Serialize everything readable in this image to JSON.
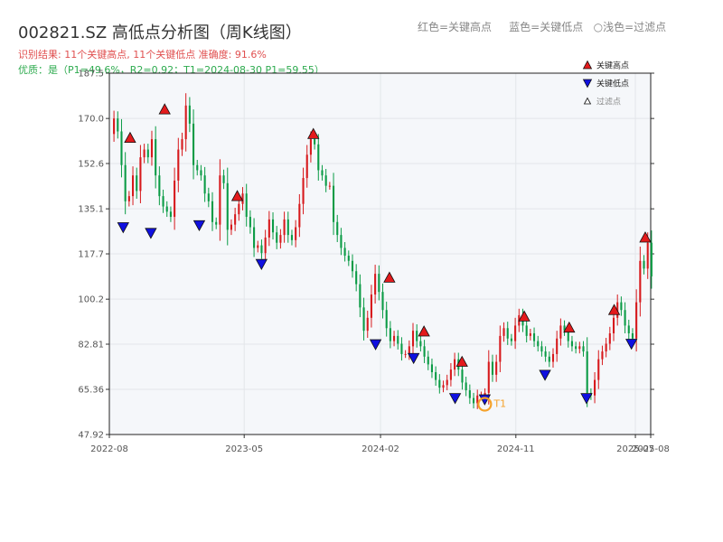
{
  "header": {
    "title": "002821.SZ 高低点分析图（周K线图）",
    "key_red": "红色=关键高点",
    "key_blue": "蓝色=关键低点",
    "key_light": "○浅色=过滤点",
    "result": "识别结果: 11个关键高点, 11个关键低点   准确度: 91.6%",
    "quality": "优质：是（P1=49.6%，R2=0.92；T1=2024-08-30 P1=59.55）"
  },
  "chart_data": {
    "type": "candlestick",
    "ylim": [
      47.92,
      187.5
    ],
    "yticks": [
      "47.92",
      "65.36",
      "82.81",
      "100.2",
      "117.7",
      "135.1",
      "152.6",
      "170.0",
      "187.5"
    ],
    "xticks": [
      "2022-08",
      "2023-05",
      "2024-02",
      "2024-11",
      "2025-07",
      "2025-08"
    ],
    "x_range": [
      "2022-08-01",
      "2025-08-01"
    ],
    "grid": true,
    "legend": {
      "position": "top-right",
      "entries": [
        {
          "label": "关键高点",
          "marker": "triangle-up",
          "color": "#e31a1c"
        },
        {
          "label": "关键低点",
          "marker": "triangle-down",
          "color": "#1010e0"
        },
        {
          "label": "过滤点",
          "marker": "triangle-up-small",
          "color": "#ffffff"
        }
      ]
    },
    "up_color": "#d7191c",
    "down_color": "#0a9b45",
    "closes": [
      170,
      165,
      152,
      138,
      140,
      148,
      142,
      155,
      158,
      155,
      162,
      148,
      140,
      136,
      134,
      132,
      146,
      158,
      162,
      175,
      168,
      152,
      150,
      148,
      141,
      138,
      130,
      129,
      148,
      145,
      127,
      129,
      133,
      137,
      141,
      132,
      128,
      120,
      121,
      118,
      124,
      131,
      126,
      122,
      125,
      131,
      125,
      123,
      128,
      137,
      147,
      156,
      162,
      160,
      150,
      148,
      144,
      144,
      130,
      125,
      120,
      117,
      115,
      111,
      106,
      97,
      88,
      93,
      102,
      110,
      103,
      96,
      89,
      84,
      86,
      83,
      79,
      79,
      82,
      88,
      84,
      82,
      78,
      75,
      72,
      69,
      66,
      67,
      69,
      73,
      77,
      73,
      68,
      65,
      62,
      60,
      63,
      63,
      64,
      76,
      71,
      76,
      86,
      89,
      85,
      84,
      90,
      94,
      90,
      86,
      87,
      84,
      82,
      80,
      78,
      76,
      79,
      85,
      90,
      88,
      84,
      82,
      81,
      82,
      80,
      64,
      63,
      69,
      77,
      80,
      83,
      87,
      93,
      99,
      96,
      90,
      87,
      85,
      99,
      115,
      112,
      122,
      109
    ],
    "highs": [
      {
        "date": "2022-09-12",
        "price": 162.5
      },
      {
        "date": "2022-11-21",
        "price": 173.5
      },
      {
        "date": "2023-04-17",
        "price": 140.0
      },
      {
        "date": "2023-09-18",
        "price": 164.0
      },
      {
        "date": "2024-02-19",
        "price": 108.5
      },
      {
        "date": "2024-04-29",
        "price": 87.7
      },
      {
        "date": "2024-07-15",
        "price": 76.0
      },
      {
        "date": "2024-11-18",
        "price": 93.5
      },
      {
        "date": "2025-02-17",
        "price": 89.2
      },
      {
        "date": "2025-05-19",
        "price": 96.0
      },
      {
        "date": "2025-07-21",
        "price": 124.0
      }
    ],
    "lows": [
      {
        "date": "2022-08-29",
        "price": 128.0
      },
      {
        "date": "2022-10-24",
        "price": 125.8
      },
      {
        "date": "2023-01-30",
        "price": 128.8
      },
      {
        "date": "2023-06-05",
        "price": 113.8
      },
      {
        "date": "2024-01-22",
        "price": 82.8
      },
      {
        "date": "2024-04-08",
        "price": 77.5
      },
      {
        "date": "2024-07-01",
        "price": 62.0
      },
      {
        "date": "2024-08-30",
        "price": 61.5
      },
      {
        "date": "2024-12-30",
        "price": 71.0
      },
      {
        "date": "2025-03-24",
        "price": 62.0
      },
      {
        "date": "2025-06-23",
        "price": 83.0
      }
    ],
    "filtered": [
      {
        "date": "2024-08-30",
        "price": 59.6,
        "label": "T1"
      }
    ]
  }
}
